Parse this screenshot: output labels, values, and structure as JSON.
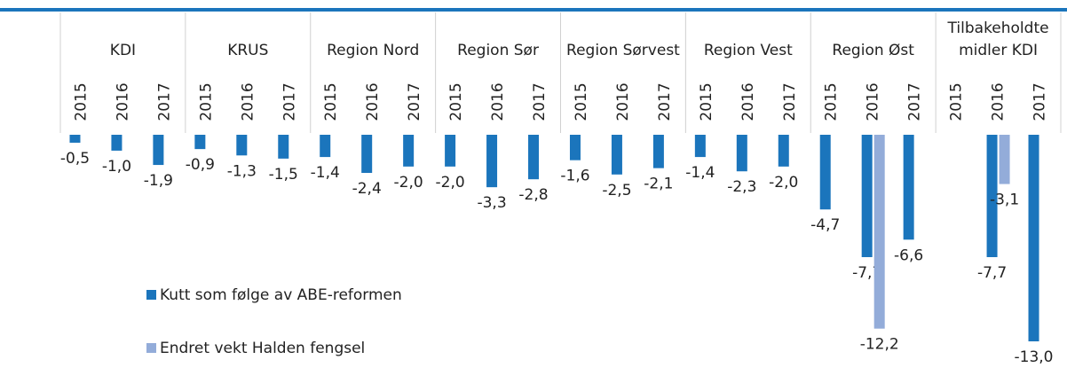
{
  "chart_data": {
    "type": "bar",
    "groups": [
      "KDI",
      "KRUS",
      "Region Nord",
      "Region Sør",
      "Region Sørvest",
      "Region Vest",
      "Region Øst",
      "Tilbakeholdte midler KDI"
    ],
    "categories": [
      "2015",
      "2016",
      "2017",
      "2015",
      "2016",
      "2017",
      "2015",
      "2016",
      "2017",
      "2015",
      "2016",
      "2017",
      "2015",
      "2016",
      "2017",
      "2015",
      "2016",
      "2017",
      "2015",
      "2016",
      "2017",
      "2015",
      "2016",
      "2017"
    ],
    "series": [
      {
        "name": "Kutt som følge av ABE-reformen",
        "color": "#1b75bc",
        "values": [
          -0.5,
          -1.0,
          -1.9,
          -0.9,
          -1.3,
          -1.5,
          -1.4,
          -2.4,
          -2.0,
          -2.0,
          -3.3,
          -2.8,
          -1.6,
          -2.5,
          -2.1,
          -1.4,
          -2.3,
          -2.0,
          -4.7,
          -7.7,
          -6.6,
          null,
          -7.7,
          -13.0
        ],
        "value_labels": [
          "-0,5",
          "-1,0",
          "-1,9",
          "-0,9",
          "-1,3",
          "-1,5",
          "-1,4",
          "-2,4",
          "-2,0",
          "-2,0",
          "-3,3",
          "-2,8",
          "-1,6",
          "-2,5",
          "-2,1",
          "-1,4",
          "-2,3",
          "-2,0",
          "-4,7",
          "-7,7",
          "-6,6",
          null,
          "-7,7",
          "-13,0"
        ]
      },
      {
        "name": "Endret vekt Halden fengsel",
        "color": "#93acd9",
        "values": [
          null,
          null,
          null,
          null,
          null,
          null,
          null,
          null,
          null,
          null,
          null,
          null,
          null,
          null,
          null,
          null,
          null,
          null,
          null,
          -12.2,
          null,
          null,
          -3.1,
          null
        ],
        "value_labels": [
          null,
          null,
          null,
          null,
          null,
          null,
          null,
          null,
          null,
          null,
          null,
          null,
          null,
          null,
          null,
          null,
          null,
          null,
          null,
          "-12,2",
          null,
          null,
          "-3,1",
          null
        ]
      }
    ],
    "ylim": [
      -13,
      0
    ]
  }
}
